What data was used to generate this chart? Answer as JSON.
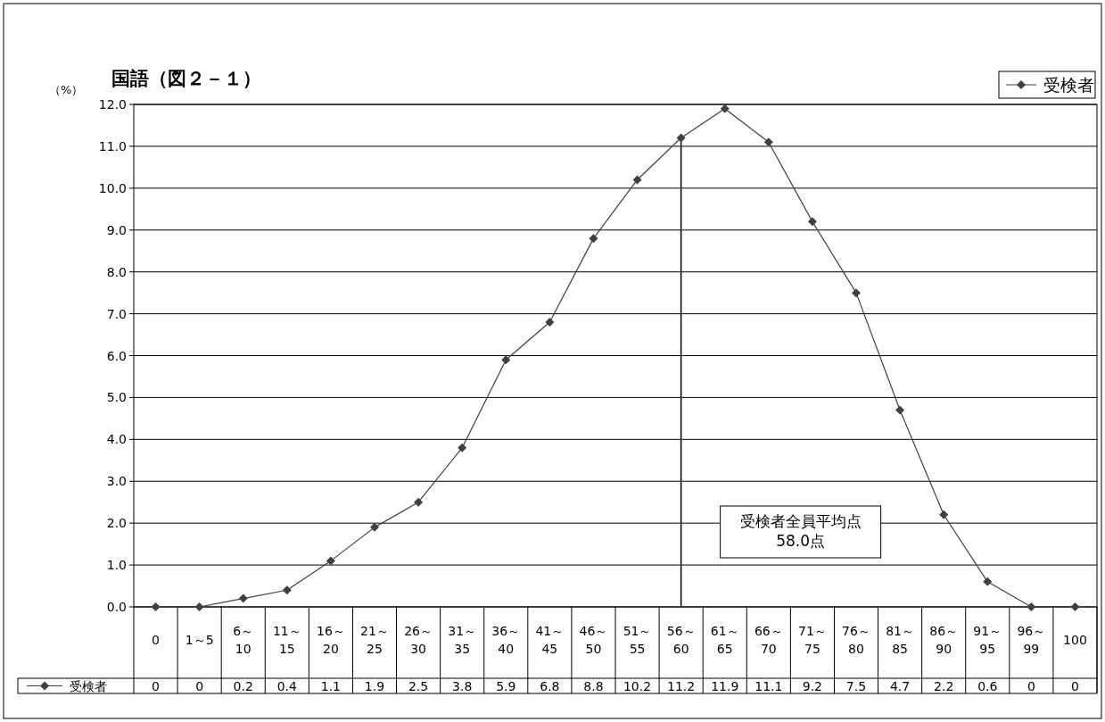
{
  "chart_data": {
    "type": "line",
    "title": "国語（図２－１）",
    "ylabel": "（%）",
    "categories": [
      "0",
      "1～5",
      "6～10",
      "11～15",
      "16～20",
      "21～25",
      "26～30",
      "31～35",
      "36～40",
      "41～45",
      "46～50",
      "51～55",
      "56～60",
      "61～65",
      "66～70",
      "71～75",
      "76～80",
      "81～85",
      "86～90",
      "91～95",
      "96～99",
      "100"
    ],
    "series": [
      {
        "name": "受検者",
        "color": "#404040",
        "values": [
          0,
          0,
          0.2,
          0.4,
          1.1,
          1.9,
          2.5,
          3.8,
          5.9,
          6.8,
          8.8,
          10.2,
          11.2,
          11.9,
          11.1,
          9.2,
          7.5,
          4.7,
          2.2,
          0.6,
          0,
          0
        ]
      }
    ],
    "ylim": [
      0,
      12
    ],
    "yticks": [
      {
        "value": 0,
        "label": "0.0"
      },
      {
        "value": 1,
        "label": "1.0"
      },
      {
        "value": 2,
        "label": "2.0"
      },
      {
        "value": 3,
        "label": "3.0"
      },
      {
        "value": 4,
        "label": "4.0"
      },
      {
        "value": 5,
        "label": "5.0"
      },
      {
        "value": 6,
        "label": "6.0"
      },
      {
        "value": 7,
        "label": "7.0"
      },
      {
        "value": 8,
        "label": "8.0"
      },
      {
        "value": 9,
        "label": "9.0"
      },
      {
        "value": 10,
        "label": "10.0"
      },
      {
        "value": 11,
        "label": "11.0"
      },
      {
        "value": 12,
        "label": "12.0"
      }
    ],
    "ref_lines": [
      {
        "axis": "x",
        "value": "56～60",
        "label": "受検者全員平均点\n58.0点"
      }
    ],
    "grid": "y",
    "legend": "top right",
    "marker": "diamond",
    "line_style": "solid",
    "data_labels": true
  }
}
